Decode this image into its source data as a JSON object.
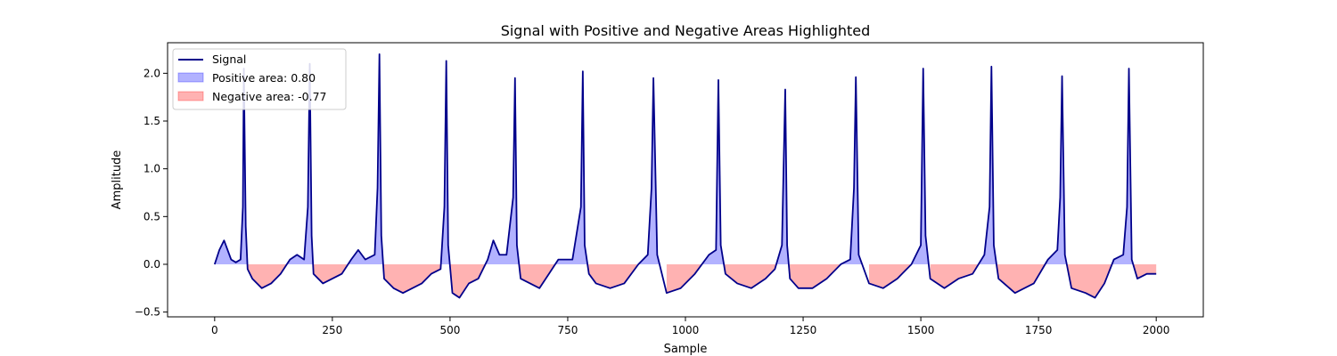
{
  "chart_data": {
    "type": "area",
    "title": "Signal with Positive and Negative Areas Highlighted",
    "xlabel": "Sample",
    "ylabel": "Amplitude",
    "xlim": [
      -100,
      2100
    ],
    "ylim": [
      -0.55,
      2.32
    ],
    "xticks": [
      0,
      250,
      500,
      750,
      1000,
      1250,
      1500,
      1750,
      2000
    ],
    "yticks": [
      -0.5,
      0.0,
      0.5,
      1.0,
      1.5,
      2.0
    ],
    "xtick_labels": [
      "0",
      "250",
      "500",
      "750",
      "1000",
      "1250",
      "1500",
      "1750",
      "2000"
    ],
    "ytick_labels": [
      "−0.5",
      "0.0",
      "0.5",
      "1.0",
      "1.5",
      "2.0"
    ],
    "grid": false,
    "legend_position": "top-left",
    "series": [
      {
        "name": "Signal",
        "kind": "line",
        "color": "#00008b",
        "x": [
          0,
          10,
          20,
          35,
          45,
          55,
          60,
          62,
          66,
          70,
          80,
          100,
          120,
          140,
          160,
          175,
          190,
          198,
          202,
          206,
          210,
          230,
          250,
          270,
          290,
          305,
          320,
          340,
          346,
          350,
          354,
          360,
          380,
          400,
          420,
          440,
          460,
          480,
          488,
          492,
          496,
          505,
          520,
          540,
          560,
          580,
          592,
          605,
          620,
          634,
          638,
          642,
          650,
          670,
          690,
          710,
          730,
          760,
          778,
          782,
          786,
          795,
          810,
          840,
          870,
          900,
          920,
          928,
          932,
          940,
          960,
          990,
          1020,
          1050,
          1065,
          1070,
          1075,
          1085,
          1110,
          1140,
          1170,
          1190,
          1205,
          1212,
          1216,
          1222,
          1240,
          1270,
          1300,
          1330,
          1350,
          1358,
          1362,
          1368,
          1390,
          1420,
          1450,
          1480,
          1500,
          1505,
          1510,
          1520,
          1550,
          1580,
          1610,
          1635,
          1646,
          1650,
          1655,
          1665,
          1700,
          1740,
          1770,
          1790,
          1796,
          1800,
          1806,
          1820,
          1850,
          1870,
          1890,
          1910,
          1930,
          1938,
          1942,
          1948,
          1960,
          1980,
          2000
        ],
        "y": [
          0.0,
          0.15,
          0.25,
          0.05,
          0.02,
          0.05,
          0.6,
          2.05,
          0.4,
          -0.05,
          -0.15,
          -0.25,
          -0.2,
          -0.1,
          0.05,
          0.1,
          0.05,
          0.6,
          2.1,
          0.3,
          -0.1,
          -0.2,
          -0.15,
          -0.1,
          0.05,
          0.15,
          0.05,
          0.1,
          0.8,
          2.2,
          0.3,
          -0.15,
          -0.25,
          -0.3,
          -0.25,
          -0.2,
          -0.1,
          -0.05,
          0.6,
          2.13,
          0.2,
          -0.3,
          -0.35,
          -0.2,
          -0.15,
          0.05,
          0.25,
          0.1,
          0.1,
          0.7,
          1.95,
          0.2,
          -0.15,
          -0.2,
          -0.25,
          -0.1,
          0.05,
          0.05,
          0.6,
          2.02,
          0.2,
          -0.1,
          -0.2,
          -0.25,
          -0.2,
          0.0,
          0.1,
          0.8,
          1.95,
          0.1,
          -0.3,
          -0.25,
          -0.1,
          0.1,
          0.15,
          1.93,
          0.2,
          -0.1,
          -0.2,
          -0.25,
          -0.15,
          -0.05,
          0.2,
          1.83,
          0.2,
          -0.15,
          -0.25,
          -0.25,
          -0.15,
          0.0,
          0.05,
          0.8,
          1.96,
          0.1,
          -0.2,
          -0.25,
          -0.15,
          0.0,
          0.2,
          2.05,
          0.3,
          -0.15,
          -0.25,
          -0.15,
          -0.1,
          0.1,
          0.6,
          2.07,
          0.2,
          -0.15,
          -0.3,
          -0.2,
          0.05,
          0.15,
          0.7,
          1.97,
          0.1,
          -0.25,
          -0.3,
          -0.35,
          -0.2,
          0.05,
          0.1,
          0.6,
          2.05,
          0.05,
          -0.15,
          -0.1,
          -0.1
        ]
      },
      {
        "name": "Positive area: 0.80",
        "kind": "fill_positive",
        "color": "#0000ff",
        "opacity": 0.3
      },
      {
        "name": "Negative area: -0.77",
        "kind": "fill_negative",
        "color": "#ff0000",
        "opacity": 0.3
      }
    ]
  }
}
